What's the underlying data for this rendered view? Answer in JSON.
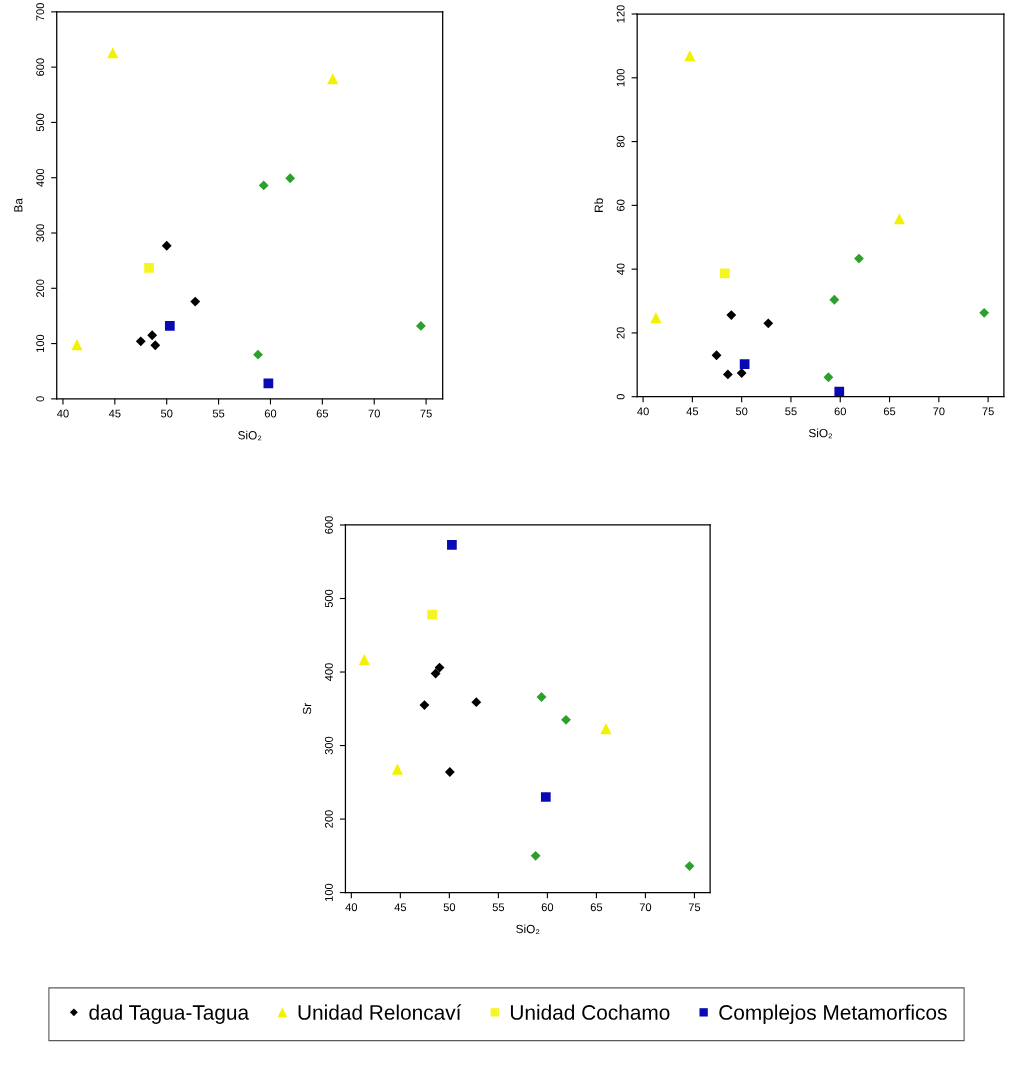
{
  "chart_data": [
    {
      "type": "scatter",
      "xlabel": "SiO₂",
      "ylabel": "Ba",
      "xlim": [
        39.4,
        76.6
      ],
      "xticks": [
        40,
        45,
        50,
        55,
        60,
        65,
        70,
        75
      ],
      "ylim": [
        0,
        700
      ],
      "yticks": [
        0,
        100,
        200,
        300,
        400,
        500,
        600,
        700
      ],
      "grid": false,
      "legend": "bottom",
      "series": [
        {
          "name": "dad Tagua-Tagua",
          "color": "#000000",
          "marker": "diamond",
          "x": [
            50.0,
            52.75,
            47.5,
            48.6,
            48.9
          ],
          "values": [
            277,
            176,
            104,
            115,
            97
          ]
        },
        {
          "name": "Unidad Reloncaví",
          "color": "#f2f200",
          "marker": "triangle",
          "x": [
            44.8,
            41.35,
            66.0
          ],
          "values": [
            626,
            98,
            579
          ]
        },
        {
          "name": "Unidad Cochamo",
          "color": "#f5f520",
          "marker": "square",
          "x": [
            48.3
          ],
          "values": [
            237
          ]
        },
        {
          "name": "Complejos Metamorficos",
          "color": "#0a0ab4",
          "marker": "square",
          "x": [
            50.3,
            59.8
          ],
          "values": [
            132,
            28
          ]
        },
        {
          "color": "#2ca02c",
          "marker": "diamond",
          "x": [
            59.35,
            61.9,
            58.8,
            74.5
          ],
          "values": [
            386,
            399,
            80,
            132
          ]
        }
      ]
    },
    {
      "type": "scatter",
      "xlabel": "SiO₂",
      "ylabel": "Rb",
      "xlim": [
        39.4,
        76.6
      ],
      "xticks": [
        40,
        45,
        50,
        55,
        60,
        65,
        70,
        75
      ],
      "ylim": [
        0,
        120
      ],
      "yticks": [
        0,
        20,
        40,
        60,
        80,
        100,
        120
      ],
      "grid": false,
      "legend": "bottom",
      "series": [
        {
          "name": "dad Tagua-Tagua",
          "color": "#000000",
          "marker": "diamond",
          "x": [
            48.95,
            52.7,
            47.45,
            48.6,
            50.0
          ],
          "values": [
            25.6,
            23.0,
            13.0,
            7.0,
            7.4
          ]
        },
        {
          "name": "Unidad Reloncaví",
          "color": "#f2f200",
          "marker": "triangle",
          "x": [
            44.74,
            41.3,
            66.0
          ],
          "values": [
            106.9,
            24.8,
            55.8
          ]
        },
        {
          "name": "Unidad Cochamo",
          "color": "#f5f520",
          "marker": "square",
          "x": [
            48.3
          ],
          "values": [
            38.7
          ]
        },
        {
          "name": "Complejos Metamorficos",
          "color": "#0a0ab4",
          "marker": "square",
          "x": [
            50.3,
            59.9
          ],
          "values": [
            10.2,
            1.6
          ]
        },
        {
          "color": "#2ca02c",
          "marker": "diamond",
          "x": [
            59.4,
            61.9,
            58.8,
            74.6
          ],
          "values": [
            30.4,
            43.3,
            6.1,
            26.3
          ]
        }
      ]
    },
    {
      "type": "scatter",
      "xlabel": "SiO₂",
      "ylabel": "Sr",
      "xlim": [
        39.4,
        76.6
      ],
      "xticks": [
        40,
        45,
        50,
        55,
        60,
        65,
        70,
        75
      ],
      "ylim": [
        100,
        600
      ],
      "yticks": [
        100,
        200,
        300,
        400,
        500,
        600
      ],
      "grid": false,
      "legend": "bottom",
      "series": [
        {
          "name": "dad Tagua-Tagua",
          "color": "#000000",
          "marker": "diamond",
          "x": [
            47.46,
            48.6,
            49.0,
            52.75,
            50.05
          ],
          "values": [
            355,
            398,
            406,
            359,
            264
          ]
        },
        {
          "name": "Unidad Reloncaví",
          "color": "#f2f200",
          "marker": "triangle",
          "x": [
            41.33,
            44.7,
            65.97
          ],
          "values": [
            417,
            268,
            323
          ]
        },
        {
          "name": "Unidad Cochamo",
          "color": "#f5f520",
          "marker": "square",
          "x": [
            48.25
          ],
          "values": [
            478
          ]
        },
        {
          "name": "Complejos Metamorficos",
          "color": "#0a0ab4",
          "marker": "square",
          "x": [
            50.26,
            59.84
          ],
          "values": [
            573,
            230
          ]
        },
        {
          "color": "#2ca02c",
          "marker": "diamond",
          "x": [
            59.4,
            61.9,
            58.8,
            74.5
          ],
          "values": [
            366,
            335,
            150,
            136
          ]
        }
      ]
    }
  ]
}
